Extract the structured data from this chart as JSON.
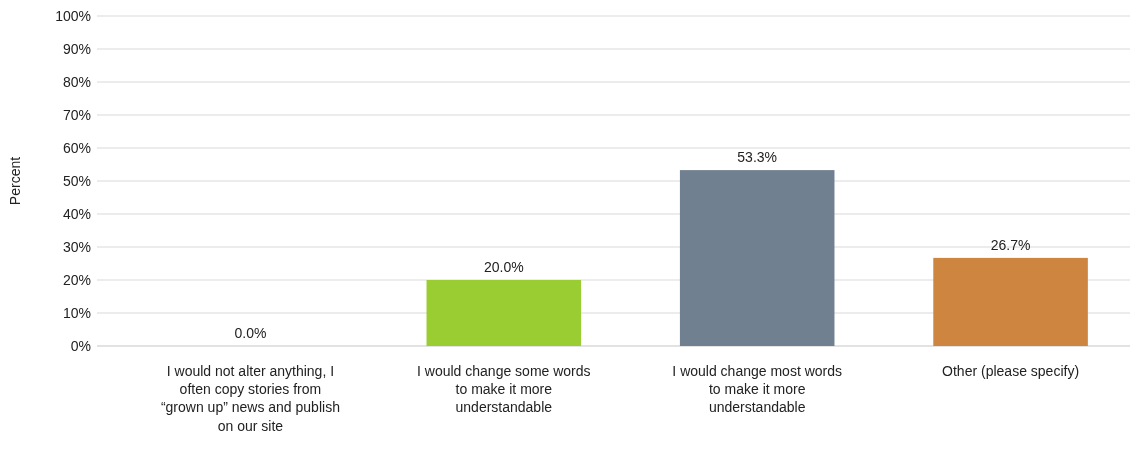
{
  "chart_data": {
    "type": "bar",
    "ylabel": "Percent",
    "categories": [
      "I would not alter anything, I often copy stories from “grown up” news and publish on our site",
      "I would change some words to make it more understandable",
      "I would change most words to make it more understandable",
      "Other (please specify)"
    ],
    "values": [
      0.0,
      20.0,
      53.3,
      26.7
    ],
    "colors": [
      "#4472c4",
      "#9acd32",
      "#708090",
      "#cd853f"
    ],
    "value_labels": [
      "0.0%",
      "20.0%",
      "53.3%",
      "26.7%"
    ],
    "ylim": [
      0,
      100
    ],
    "yticks": [
      {
        "value": 0,
        "label": "0%"
      },
      {
        "value": 10,
        "label": "10%"
      },
      {
        "value": 20,
        "label": "20%"
      },
      {
        "value": 30,
        "label": "30%"
      },
      {
        "value": 40,
        "label": "40%"
      },
      {
        "value": 50,
        "label": "50%"
      },
      {
        "value": 60,
        "label": "60%"
      },
      {
        "value": 70,
        "label": "70%"
      },
      {
        "value": 80,
        "label": "80%"
      },
      {
        "value": 90,
        "label": "90%"
      },
      {
        "value": 100,
        "label": "100%"
      }
    ],
    "grid": "y"
  }
}
